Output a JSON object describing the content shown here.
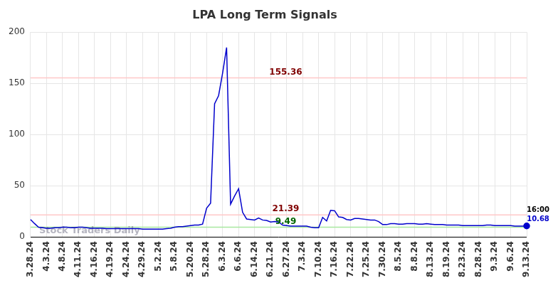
{
  "chart_data": {
    "type": "line",
    "title": "LPA Long Term Signals",
    "categories": [
      "3.28.24",
      null,
      null,
      null,
      "4.3.24",
      null,
      null,
      null,
      "4.8.24",
      null,
      null,
      null,
      "4.11.24",
      null,
      null,
      null,
      "4.16.24",
      null,
      null,
      null,
      "4.19.24",
      null,
      null,
      null,
      "4.24.24",
      null,
      null,
      null,
      "4.29.24",
      null,
      null,
      null,
      "5.2.24",
      null,
      null,
      null,
      "5.8.24",
      null,
      null,
      null,
      "5.20.24",
      null,
      null,
      null,
      "5.28.24",
      null,
      null,
      null,
      "6.3.24",
      null,
      null,
      null,
      "6.6.24",
      null,
      null,
      null,
      "6.14.24",
      null,
      null,
      null,
      "6.21.24",
      null,
      null,
      null,
      "6.27.24",
      null,
      null,
      null,
      "7.3.24",
      null,
      null,
      null,
      "7.10.24",
      null,
      null,
      null,
      "7.16.24",
      null,
      null,
      null,
      "7.22.24",
      null,
      null,
      null,
      "7.25.24",
      null,
      null,
      null,
      "7.30.24",
      null,
      null,
      null,
      "8.5.24",
      null,
      null,
      null,
      "8.8.24",
      null,
      null,
      null,
      "8.13.24",
      null,
      null,
      null,
      "8.19.24",
      null,
      null,
      null,
      "8.23.24",
      null,
      null,
      null,
      "8.28.24",
      null,
      null,
      null,
      "9.3.24",
      null,
      null,
      null,
      "9.6.24",
      null,
      null,
      null,
      "9.13.24"
    ],
    "values": [
      17,
      13,
      9.5,
      9,
      8.5,
      8.5,
      9,
      9,
      9.5,
      9.5,
      9,
      9,
      9.5,
      9.5,
      9,
      8.5,
      8.5,
      8.5,
      8.5,
      8,
      8,
      8,
      8,
      8,
      8,
      8,
      8,
      8,
      7.5,
      7.5,
      7.5,
      7.5,
      7.5,
      7.5,
      8,
      8.5,
      9.5,
      10,
      10,
      10.5,
      11,
      11.5,
      11.5,
      12.5,
      28,
      33,
      130,
      138,
      160,
      185,
      32,
      40,
      47,
      24,
      17.5,
      17,
      16.5,
      18.5,
      16.5,
      16,
      14.5,
      15,
      14.5,
      11.5,
      11,
      10.5,
      10.5,
      10.5,
      10.5,
      10.5,
      9.5,
      9,
      9,
      19,
      15.5,
      26,
      25.5,
      19.5,
      19,
      17,
      16.5,
      18,
      18,
      17.5,
      17,
      16.5,
      16.5,
      15,
      12,
      12,
      13,
      13,
      12.5,
      12.5,
      13,
      13,
      13,
      12.5,
      12.5,
      13,
      12.5,
      12,
      12,
      12,
      11.5,
      11.5,
      11.5,
      11.5,
      11,
      11,
      11,
      11,
      11,
      11,
      11.5,
      11.5,
      11,
      11,
      11,
      11,
      11,
      10.5,
      10.5,
      10.5,
      10.68
    ],
    "color": "#0000cc",
    "ylim": [
      0,
      200
    ],
    "yticks": [
      0,
      50,
      100,
      150,
      200
    ],
    "grid": true,
    "reference_lines": [
      {
        "value": 155.36,
        "color": "#ffc8c8",
        "label_color": "#800000"
      },
      {
        "value": 21.39,
        "color": "#ffc8c8",
        "label_color": "#800000"
      },
      {
        "value": 9.49,
        "color": "#a8e8a0",
        "label_color": "#006400"
      }
    ],
    "watermark": "Stock Traders Daily",
    "last_point": {
      "time": "16:00",
      "value": 10.68
    }
  }
}
